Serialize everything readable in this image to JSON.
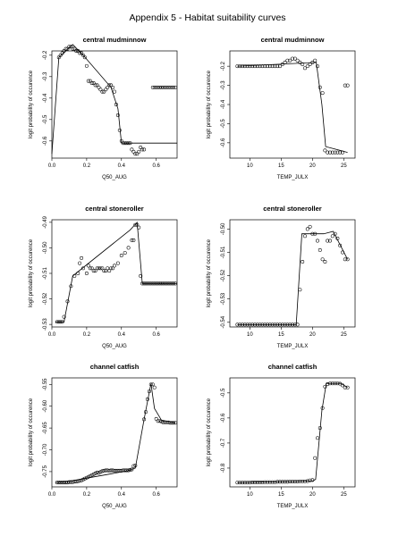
{
  "page": {
    "title": "Appendix 5 - Habitat suitability curves"
  },
  "colors": {
    "ink": "#000000",
    "background": "#ffffff"
  },
  "chart_data": [
    {
      "type": "scatter",
      "title": "central mudminnow",
      "xlabel": "Q50_AUG",
      "ylabel": "logit probability of occurence",
      "xlim": [
        0.0,
        0.72
      ],
      "ylim": [
        -0.68,
        -0.18
      ],
      "xticks": [
        0.0,
        0.2,
        0.4,
        0.6
      ],
      "xtick_labels": [
        "0.0",
        "0.2",
        "0.4",
        "0.6"
      ],
      "yticks": [
        -0.6,
        -0.5,
        -0.4,
        -0.3,
        -0.2
      ],
      "ytick_labels": [
        "-0.6",
        "-0.5",
        "-0.4",
        "-0.3",
        "-0.2"
      ],
      "grid": false,
      "legend": "none",
      "series": [
        {
          "kind": "points",
          "x": [
            0.04,
            0.05,
            0.06,
            0.07,
            0.08,
            0.09,
            0.1,
            0.11,
            0.12,
            0.13,
            0.14,
            0.15,
            0.16,
            0.17,
            0.18,
            0.19,
            0.2,
            0.21,
            0.22,
            0.23,
            0.24,
            0.25,
            0.26,
            0.27,
            0.28,
            0.29,
            0.3,
            0.31,
            0.32,
            0.33,
            0.34,
            0.35,
            0.36,
            0.37,
            0.38,
            0.39,
            0.4,
            0.41,
            0.42,
            0.43,
            0.44,
            0.45,
            0.46,
            0.47,
            0.48,
            0.49,
            0.5,
            0.51,
            0.52,
            0.53,
            0.58,
            0.59,
            0.6,
            0.61,
            0.62,
            0.63,
            0.64,
            0.65,
            0.66,
            0.67,
            0.68,
            0.69,
            0.7,
            0.71
          ],
          "y": [
            -0.21,
            -0.2,
            -0.19,
            -0.18,
            -0.17,
            -0.17,
            -0.16,
            -0.16,
            -0.17,
            -0.17,
            -0.18,
            -0.18,
            -0.19,
            -0.19,
            -0.2,
            -0.21,
            -0.25,
            -0.32,
            -0.32,
            -0.33,
            -0.33,
            -0.34,
            -0.34,
            -0.35,
            -0.36,
            -0.37,
            -0.37,
            -0.36,
            -0.35,
            -0.34,
            -0.34,
            -0.35,
            -0.37,
            -0.43,
            -0.48,
            -0.55,
            -0.6,
            -0.61,
            -0.61,
            -0.61,
            -0.61,
            -0.61,
            -0.64,
            -0.65,
            -0.66,
            -0.66,
            -0.65,
            -0.63,
            -0.64,
            -0.64,
            -0.35,
            -0.35,
            -0.35,
            -0.35,
            -0.35,
            -0.35,
            -0.35,
            -0.35,
            -0.35,
            -0.35,
            -0.35,
            -0.35,
            -0.35,
            -0.35
          ]
        },
        {
          "kind": "line",
          "x": [
            0.0,
            0.04,
            0.12,
            0.18,
            0.34,
            0.38,
            0.4,
            0.72
          ],
          "y": [
            -0.66,
            -0.21,
            -0.15,
            -0.2,
            -0.35,
            -0.45,
            -0.61,
            -0.61
          ]
        }
      ]
    },
    {
      "type": "scatter",
      "title": "central mudminnow",
      "xlabel": "TEMP_JULX",
      "ylabel": "logit probability of occurence",
      "xlim": [
        6.8,
        26.8
      ],
      "ylim": [
        -0.68,
        -0.12
      ],
      "xticks": [
        10,
        15,
        20,
        25
      ],
      "xtick_labels": [
        "10",
        "15",
        "20",
        "25"
      ],
      "yticks": [
        -0.6,
        -0.5,
        -0.4,
        -0.3,
        -0.2
      ],
      "ytick_labels": [
        "-0.6",
        "-0.5",
        "-0.4",
        "-0.3",
        "-0.2"
      ],
      "grid": false,
      "legend": "none",
      "series": [
        {
          "kind": "points",
          "x": [
            8.0,
            8.4,
            8.8,
            9.2,
            9.6,
            10.0,
            10.4,
            10.8,
            11.2,
            11.6,
            12.0,
            12.4,
            12.8,
            13.2,
            13.6,
            14.0,
            14.4,
            14.8,
            15.2,
            15.6,
            16.0,
            16.4,
            16.8,
            17.2,
            17.6,
            18.0,
            18.4,
            18.8,
            19.2,
            19.6,
            20.0,
            20.4,
            20.8,
            21.2,
            21.6,
            22.0,
            22.4,
            22.8,
            23.2,
            23.6,
            24.0,
            24.4,
            24.8,
            25.2,
            25.6
          ],
          "y": [
            -0.2,
            -0.2,
            -0.2,
            -0.2,
            -0.2,
            -0.2,
            -0.2,
            -0.2,
            -0.2,
            -0.2,
            -0.2,
            -0.2,
            -0.2,
            -0.2,
            -0.2,
            -0.2,
            -0.2,
            -0.2,
            -0.19,
            -0.18,
            -0.17,
            -0.17,
            -0.16,
            -0.16,
            -0.17,
            -0.18,
            -0.19,
            -0.21,
            -0.2,
            -0.19,
            -0.18,
            -0.17,
            -0.2,
            -0.31,
            -0.34,
            -0.64,
            -0.65,
            -0.65,
            -0.65,
            -0.65,
            -0.65,
            -0.65,
            -0.65,
            -0.3,
            -0.3
          ]
        },
        {
          "kind": "line",
          "x": [
            8.0,
            20.6,
            21.5,
            22.1,
            25.6
          ],
          "y": [
            -0.2,
            -0.18,
            -0.4,
            -0.62,
            -0.65
          ]
        }
      ]
    },
    {
      "type": "scatter",
      "title": "central stoneroller",
      "xlabel": "Q50_AUG",
      "ylabel": "logit probability of occurence",
      "xlim": [
        0.0,
        0.72
      ],
      "ylim": [
        -0.531,
        -0.489
      ],
      "xticks": [
        0.0,
        0.2,
        0.4,
        0.6
      ],
      "xtick_labels": [
        "0.0",
        "0.2",
        "0.4",
        "0.6"
      ],
      "yticks": [
        -0.53,
        -0.52,
        -0.51,
        -0.5,
        -0.49
      ],
      "ytick_labels": [
        "-0.53",
        "-0.52",
        "-0.51",
        "-0.50",
        "-0.49"
      ],
      "grid": false,
      "legend": "none",
      "series": [
        {
          "kind": "points",
          "x": [
            0.03,
            0.04,
            0.05,
            0.06,
            0.07,
            0.09,
            0.11,
            0.13,
            0.15,
            0.16,
            0.17,
            0.18,
            0.2,
            0.21,
            0.22,
            0.23,
            0.24,
            0.25,
            0.26,
            0.27,
            0.28,
            0.29,
            0.3,
            0.31,
            0.32,
            0.33,
            0.34,
            0.35,
            0.36,
            0.38,
            0.4,
            0.42,
            0.44,
            0.46,
            0.47,
            0.48,
            0.49,
            0.5,
            0.51,
            0.52,
            0.53,
            0.54,
            0.55,
            0.56,
            0.57,
            0.58,
            0.59,
            0.6,
            0.61,
            0.62,
            0.63,
            0.64,
            0.65,
            0.66,
            0.67,
            0.68,
            0.69,
            0.7,
            0.71
          ],
          "y": [
            -0.529,
            -0.529,
            -0.529,
            -0.529,
            -0.527,
            -0.521,
            -0.515,
            -0.511,
            -0.51,
            -0.506,
            -0.504,
            -0.508,
            -0.51,
            -0.507,
            -0.508,
            -0.508,
            -0.509,
            -0.509,
            -0.508,
            -0.508,
            -0.508,
            -0.508,
            -0.509,
            -0.509,
            -0.508,
            -0.509,
            -0.508,
            -0.508,
            -0.507,
            -0.506,
            -0.503,
            -0.502,
            -0.5,
            -0.497,
            -0.497,
            -0.491,
            -0.491,
            -0.492,
            -0.511,
            -0.514,
            -0.514,
            -0.514,
            -0.514,
            -0.514,
            -0.514,
            -0.514,
            -0.514,
            -0.514,
            -0.514,
            -0.514,
            -0.514,
            -0.514,
            -0.514,
            -0.514,
            -0.514,
            -0.514,
            -0.514,
            -0.514,
            -0.514
          ]
        },
        {
          "kind": "line",
          "x": [
            0.02,
            0.07,
            0.12,
            0.45,
            0.49,
            0.52,
            0.72
          ],
          "y": [
            -0.529,
            -0.529,
            -0.511,
            -0.493,
            -0.49,
            -0.514,
            -0.514
          ]
        }
      ]
    },
    {
      "type": "scatter",
      "title": "central stoneroller",
      "xlabel": "TEMP_JULX",
      "ylabel": "logit probability of occurence",
      "xlim": [
        6.8,
        26.8
      ],
      "ylim": [
        -0.542,
        -0.496
      ],
      "xticks": [
        10,
        15,
        20,
        25
      ],
      "xtick_labels": [
        "10",
        "15",
        "20",
        "25"
      ],
      "yticks": [
        -0.54,
        -0.53,
        -0.52,
        -0.51,
        -0.5
      ],
      "ytick_labels": [
        "-0.54",
        "-0.53",
        "-0.52",
        "-0.51",
        "-0.50"
      ],
      "grid": false,
      "legend": "none",
      "series": [
        {
          "kind": "points",
          "x": [
            8.0,
            8.4,
            8.8,
            9.2,
            9.6,
            10.0,
            10.4,
            10.8,
            11.2,
            11.6,
            12.0,
            12.4,
            12.8,
            13.2,
            13.6,
            14.0,
            14.4,
            14.8,
            15.2,
            15.6,
            16.0,
            16.4,
            16.8,
            17.2,
            17.6,
            18.0,
            18.4,
            18.8,
            19.2,
            19.6,
            20.0,
            20.4,
            20.8,
            21.2,
            21.6,
            22.0,
            22.4,
            22.8,
            23.2,
            23.6,
            24.0,
            24.4,
            24.8,
            25.2,
            25.6
          ],
          "y": [
            -0.541,
            -0.541,
            -0.541,
            -0.541,
            -0.541,
            -0.541,
            -0.541,
            -0.541,
            -0.541,
            -0.541,
            -0.541,
            -0.541,
            -0.541,
            -0.541,
            -0.541,
            -0.541,
            -0.541,
            -0.541,
            -0.541,
            -0.541,
            -0.541,
            -0.541,
            -0.541,
            -0.541,
            -0.541,
            -0.526,
            -0.514,
            -0.503,
            -0.5,
            -0.499,
            -0.502,
            -0.502,
            -0.505,
            -0.509,
            -0.513,
            -0.514,
            -0.505,
            -0.505,
            -0.503,
            -0.502,
            -0.504,
            -0.507,
            -0.51,
            -0.513,
            -0.513
          ]
        },
        {
          "kind": "line",
          "x": [
            8.0,
            17.4,
            18.3,
            21.8,
            23.3,
            25.6
          ],
          "y": [
            -0.541,
            -0.541,
            -0.502,
            -0.502,
            -0.501,
            -0.513
          ]
        }
      ]
    },
    {
      "type": "scatter",
      "title": "channel catfish",
      "xlabel": "Q50_AUG",
      "ylabel": "logit probability of occurence",
      "xlim": [
        0.0,
        0.72
      ],
      "ylim": [
        -0.785,
        -0.535
      ],
      "xticks": [
        0.0,
        0.2,
        0.4,
        0.6
      ],
      "xtick_labels": [
        "0.0",
        "0.2",
        "0.4",
        "0.6"
      ],
      "yticks": [
        -0.75,
        -0.7,
        -0.65,
        -0.6,
        -0.55
      ],
      "ytick_labels": [
        "-0.75",
        "-0.70",
        "-0.65",
        "-0.60",
        "-0.55"
      ],
      "grid": false,
      "legend": "none",
      "series": [
        {
          "kind": "points",
          "x": [
            0.03,
            0.04,
            0.05,
            0.06,
            0.07,
            0.08,
            0.09,
            0.1,
            0.11,
            0.12,
            0.13,
            0.14,
            0.15,
            0.16,
            0.17,
            0.18,
            0.19,
            0.2,
            0.21,
            0.22,
            0.23,
            0.24,
            0.25,
            0.26,
            0.27,
            0.28,
            0.29,
            0.3,
            0.31,
            0.32,
            0.33,
            0.34,
            0.35,
            0.36,
            0.37,
            0.38,
            0.39,
            0.4,
            0.41,
            0.42,
            0.43,
            0.44,
            0.45,
            0.46,
            0.47,
            0.48,
            0.53,
            0.54,
            0.55,
            0.56,
            0.57,
            0.58,
            0.59,
            0.6,
            0.61,
            0.62,
            0.63,
            0.64,
            0.65,
            0.66,
            0.67,
            0.68,
            0.69,
            0.7,
            0.71
          ],
          "y": [
            -0.775,
            -0.775,
            -0.775,
            -0.775,
            -0.775,
            -0.775,
            -0.775,
            -0.774,
            -0.774,
            -0.774,
            -0.773,
            -0.773,
            -0.772,
            -0.771,
            -0.77,
            -0.768,
            -0.766,
            -0.764,
            -0.762,
            -0.76,
            -0.758,
            -0.756,
            -0.754,
            -0.752,
            -0.753,
            -0.751,
            -0.749,
            -0.748,
            -0.747,
            -0.747,
            -0.748,
            -0.747,
            -0.747,
            -0.748,
            -0.748,
            -0.748,
            -0.748,
            -0.748,
            -0.747,
            -0.747,
            -0.747,
            -0.747,
            -0.746,
            -0.745,
            -0.737,
            -0.736,
            -0.63,
            -0.613,
            -0.584,
            -0.566,
            -0.55,
            -0.55,
            -0.557,
            -0.629,
            -0.634,
            -0.634,
            -0.635,
            -0.637,
            -0.637,
            -0.637,
            -0.637,
            -0.638,
            -0.638,
            -0.638,
            -0.638
          ]
        },
        {
          "kind": "line",
          "x": [
            0.02,
            0.1,
            0.3,
            0.44,
            0.48,
            0.53,
            0.57,
            0.59,
            0.63,
            0.71
          ],
          "y": [
            -0.775,
            -0.772,
            -0.758,
            -0.748,
            -0.742,
            -0.63,
            -0.548,
            -0.605,
            -0.632,
            -0.638
          ]
        }
      ]
    },
    {
      "type": "scatter",
      "title": "channel catfish",
      "xlabel": "TEMP_JULX",
      "ylabel": "logit probability of occurence",
      "xlim": [
        6.8,
        26.8
      ],
      "ylim": [
        -0.875,
        -0.44
      ],
      "xticks": [
        10,
        15,
        20,
        25
      ],
      "xtick_labels": [
        "10",
        "15",
        "20",
        "25"
      ],
      "yticks": [
        -0.8,
        -0.7,
        -0.6,
        -0.5
      ],
      "ytick_labels": [
        "-0.8",
        "-0.7",
        "-0.6",
        "-0.5"
      ],
      "grid": false,
      "legend": "none",
      "series": [
        {
          "kind": "points",
          "x": [
            8.0,
            8.4,
            8.8,
            9.2,
            9.6,
            10.0,
            10.4,
            10.8,
            11.2,
            11.6,
            12.0,
            12.4,
            12.8,
            13.2,
            13.6,
            14.0,
            14.4,
            14.8,
            15.2,
            15.6,
            16.0,
            16.4,
            16.8,
            17.2,
            17.6,
            18.0,
            18.4,
            18.8,
            19.2,
            19.6,
            20.0,
            20.4,
            20.8,
            21.2,
            21.6,
            22.0,
            22.4,
            22.8,
            23.2,
            23.6,
            24.0,
            24.4,
            24.8,
            25.2,
            25.6
          ],
          "y": [
            -0.858,
            -0.858,
            -0.858,
            -0.858,
            -0.858,
            -0.858,
            -0.857,
            -0.857,
            -0.857,
            -0.857,
            -0.857,
            -0.856,
            -0.856,
            -0.856,
            -0.856,
            -0.856,
            -0.855,
            -0.855,
            -0.855,
            -0.855,
            -0.855,
            -0.854,
            -0.854,
            -0.854,
            -0.854,
            -0.853,
            -0.853,
            -0.853,
            -0.852,
            -0.849,
            -0.848,
            -0.76,
            -0.68,
            -0.64,
            -0.56,
            -0.475,
            -0.465,
            -0.462,
            -0.462,
            -0.462,
            -0.462,
            -0.463,
            -0.47,
            -0.478,
            -0.478
          ]
        },
        {
          "kind": "line",
          "x": [
            8.0,
            20.0,
            20.5,
            21.5,
            22.2,
            24.5,
            25.6
          ],
          "y": [
            -0.858,
            -0.852,
            -0.845,
            -0.57,
            -0.462,
            -0.462,
            -0.478
          ]
        }
      ]
    }
  ]
}
